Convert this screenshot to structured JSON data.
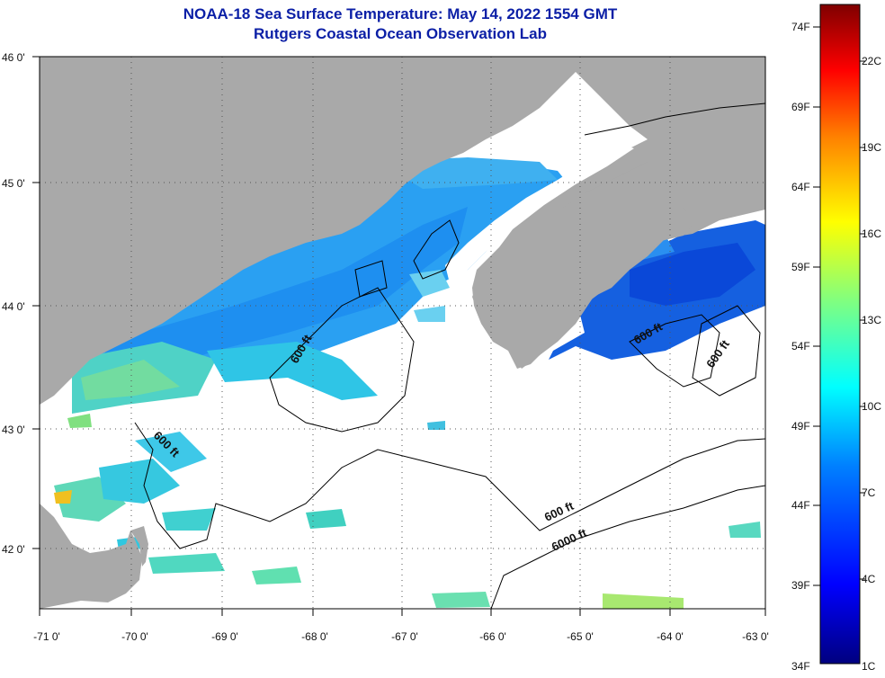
{
  "header": {
    "title": "NOAA-18 Sea Surface Temperature:  May 14, 2022 1554 GMT",
    "subtitle": "Rutgers Coastal Ocean Observation Lab"
  },
  "map": {
    "lon_range": [
      -71,
      -63
    ],
    "lat_range": [
      41.5,
      46
    ],
    "lon_ticks": [
      "-71 0'",
      "-70 0'",
      "-69 0'",
      "-68 0'",
      "-67 0'",
      "-66 0'",
      "-65 0'",
      "-64 0'",
      "-63 0'"
    ],
    "lat_ticks": [
      "46 0'",
      "45 0'",
      "44 0'",
      "43 0'",
      "42 0'"
    ],
    "contour_labels": [
      "600 ft",
      "600 ft",
      "600 ft",
      "600 ft",
      "600 ft",
      "6000 ft"
    ],
    "colors": {
      "land": "#a9a9a9",
      "no_data": "#ffffff",
      "grid": "#555555"
    }
  },
  "colorbar": {
    "fahrenheit": [
      "74F",
      "69F",
      "64F",
      "59F",
      "54F",
      "49F",
      "44F",
      "39F",
      "34F"
    ],
    "celsius": [
      "22C",
      "19C",
      "16C",
      "13C",
      "10C",
      "7C",
      "4C",
      "1C"
    ],
    "range_c": [
      1,
      24
    ]
  }
}
